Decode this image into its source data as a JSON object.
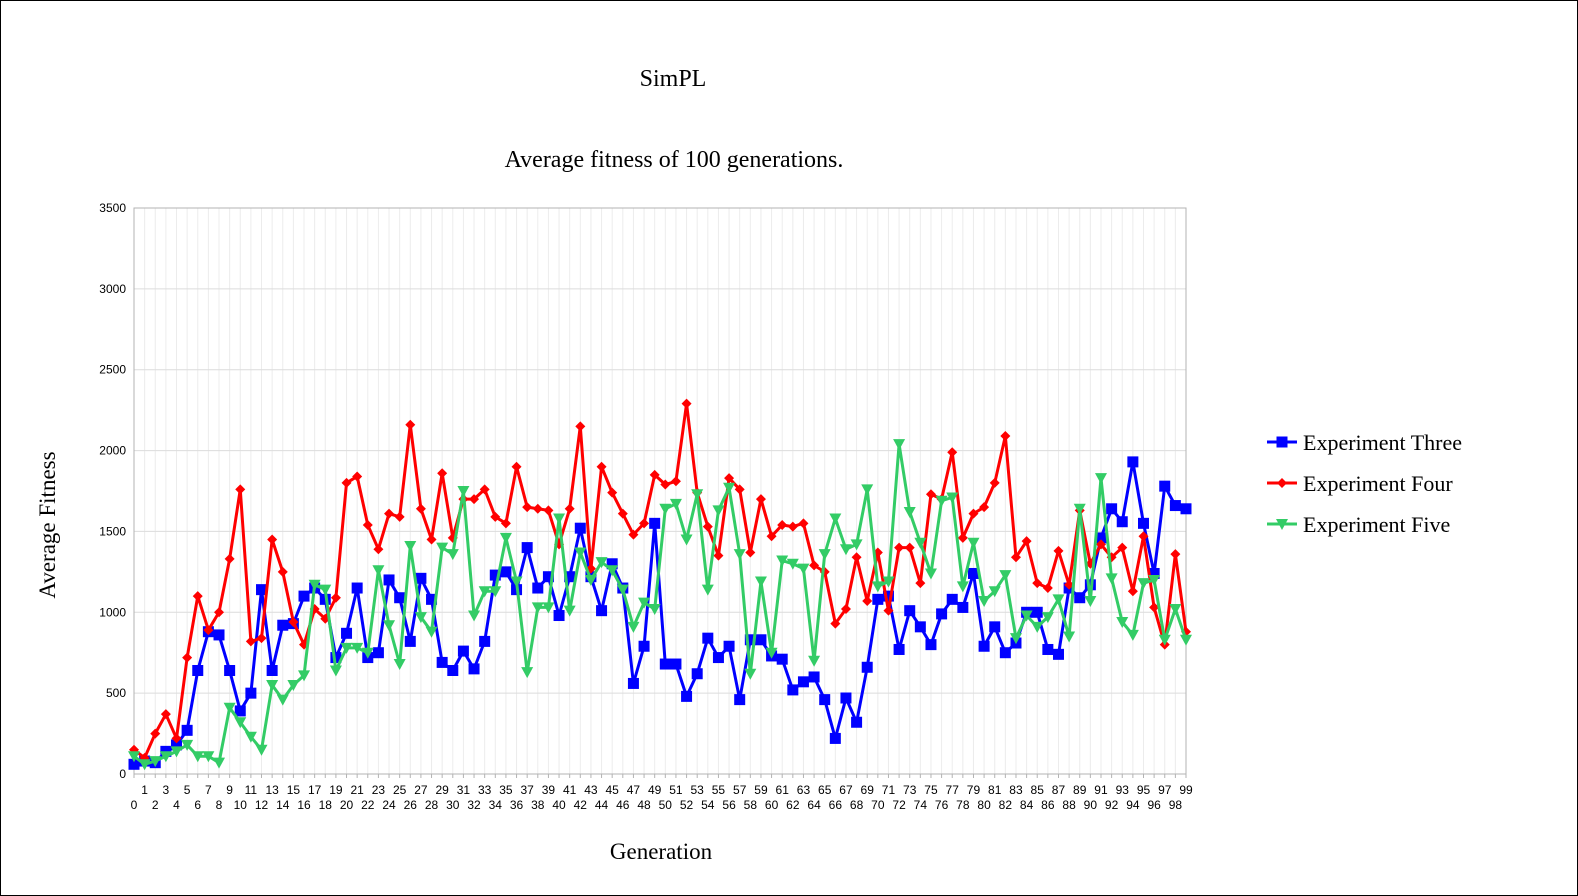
{
  "chart_data": {
    "type": "line",
    "title": "SimPL",
    "subtitle": "Average fitness of 100 generations.",
    "xlabel": "Generation",
    "ylabel": "Average Fitness",
    "ylim": [
      0,
      3500
    ],
    "yticks": [
      0,
      500,
      1000,
      1500,
      2000,
      2500,
      3000,
      3500
    ],
    "xlim": [
      0,
      99
    ],
    "grid": true,
    "legend_position": "right",
    "series": [
      {
        "name": "Experiment Three",
        "color": "#0000ff",
        "marker": "square",
        "values": [
          60,
          80,
          70,
          140,
          180,
          270,
          640,
          880,
          860,
          640,
          390,
          500,
          1140,
          640,
          920,
          930,
          1100,
          1150,
          1080,
          720,
          870,
          1150,
          720,
          750,
          1200,
          1090,
          820,
          1210,
          1080,
          690,
          640,
          760,
          650,
          820,
          1230,
          1250,
          1140,
          1400,
          1150,
          1220,
          980,
          1220,
          1520,
          1220,
          1010,
          1300,
          1150,
          560,
          790,
          1550,
          680,
          680,
          480,
          620,
          840,
          720,
          790,
          460,
          830,
          830,
          730,
          710,
          520,
          570,
          600,
          460,
          220,
          470,
          320,
          660,
          1080,
          1100,
          770,
          1010,
          910,
          800,
          990,
          1080,
          1030,
          1240,
          790,
          910,
          750,
          810,
          1000,
          1000,
          770,
          740,
          1150,
          1090,
          1170,
          1460,
          1640,
          1560,
          1930,
          1550,
          1240,
          1780,
          1660,
          1640
        ]
      },
      {
        "name": "Experiment Four",
        "color": "#ff0000",
        "marker": "diamond",
        "values": [
          150,
          100,
          250,
          370,
          220,
          720,
          1100,
          890,
          1000,
          1330,
          1760,
          820,
          840,
          1450,
          1250,
          940,
          800,
          1020,
          960,
          1090,
          1800,
          1840,
          1540,
          1390,
          1610,
          1590,
          2160,
          1640,
          1450,
          1860,
          1460,
          1700,
          1700,
          1760,
          1590,
          1550,
          1900,
          1650,
          1640,
          1630,
          1420,
          1640,
          2150,
          1270,
          1900,
          1740,
          1610,
          1480,
          1550,
          1850,
          1790,
          1810,
          2290,
          1740,
          1530,
          1350,
          1830,
          1760,
          1370,
          1700,
          1470,
          1540,
          1530,
          1550,
          1290,
          1250,
          930,
          1020,
          1340,
          1070,
          1370,
          1010,
          1400,
          1400,
          1180,
          1730,
          1700,
          1990,
          1460,
          1610,
          1650,
          1800,
          2090,
          1340,
          1440,
          1180,
          1150,
          1380,
          1170,
          1630,
          1300,
          1420,
          1340,
          1400,
          1130,
          1470,
          1030,
          800,
          1360,
          880
        ]
      },
      {
        "name": "Experiment Five",
        "color": "#33cc66",
        "marker": "triangle-down",
        "values": [
          110,
          60,
          80,
          110,
          140,
          180,
          110,
          110,
          70,
          410,
          320,
          230,
          150,
          550,
          460,
          550,
          610,
          1170,
          1140,
          640,
          780,
          780,
          750,
          1260,
          920,
          680,
          1410,
          970,
          880,
          1400,
          1360,
          1750,
          980,
          1130,
          1130,
          1460,
          1190,
          630,
          1030,
          1030,
          1580,
          1010,
          1370,
          1200,
          1310,
          1260,
          1140,
          910,
          1060,
          1020,
          1640,
          1670,
          1450,
          1730,
          1140,
          1630,
          1770,
          1360,
          620,
          1190,
          750,
          1320,
          1300,
          1270,
          700,
          1360,
          1580,
          1390,
          1420,
          1760,
          1160,
          1190,
          2040,
          1620,
          1430,
          1240,
          1690,
          1710,
          1160,
          1430,
          1070,
          1130,
          1230,
          840,
          980,
          910,
          970,
          1080,
          850,
          1640,
          1070,
          1830,
          1210,
          940,
          860,
          1180,
          1200,
          830,
          1020,
          830
        ]
      }
    ]
  }
}
